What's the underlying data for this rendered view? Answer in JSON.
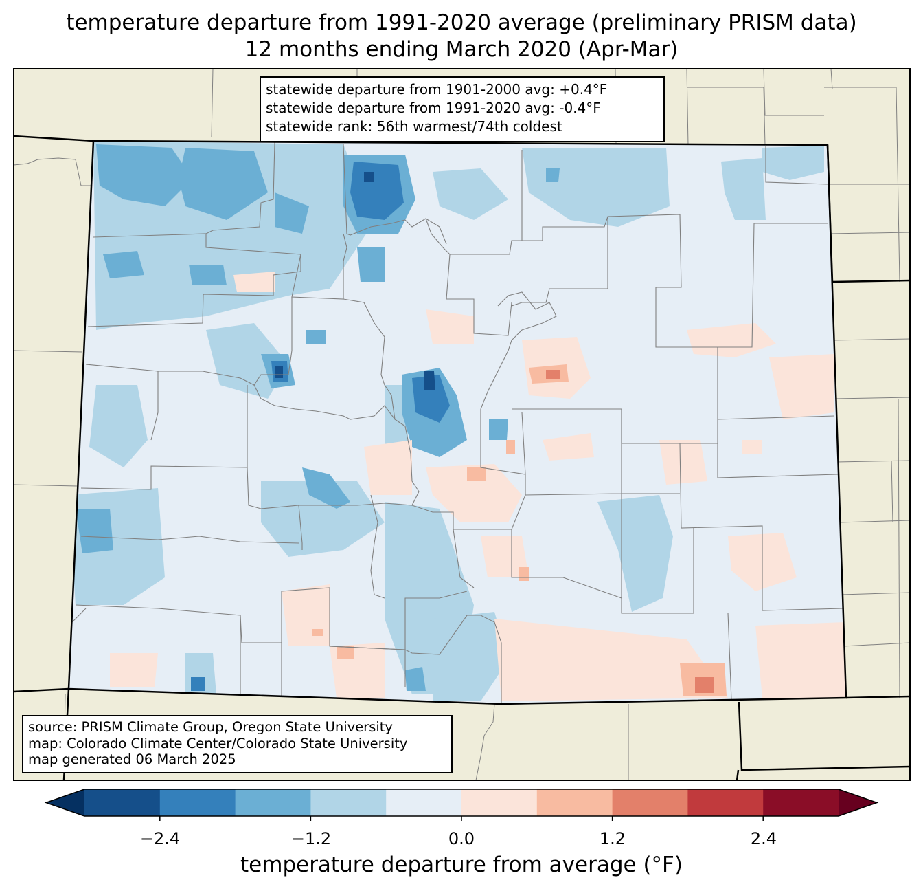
{
  "title": {
    "line1": "temperature departure from 1991-2020 average (preliminary PRISM data)",
    "line2": "12 months ending March 2020 (Apr-Mar)"
  },
  "stats": {
    "line1": "statewide departure from 1901-2000 avg: +0.4°F",
    "line2": "statewide departure from 1991-2020 avg: -0.4°F",
    "line3": "statewide rank: 56th warmest/74th coldest"
  },
  "source": {
    "line1": "source: PRISM Climate Group, Oregon State University",
    "line2": "map: Colorado Climate Center/Colorado State University",
    "line3": "map generated 06 March 2025"
  },
  "colorbar": {
    "label": "temperature departure from average (°F)",
    "ticks": [
      "−2.4",
      "−1.2",
      "0.0",
      "1.2",
      "2.4"
    ],
    "tick_values": [
      -2.4,
      -1.2,
      0.0,
      1.2,
      2.4
    ],
    "bins": [
      -3.0,
      -2.4,
      -1.8,
      -1.2,
      -0.6,
      0.0,
      0.6,
      1.2,
      1.8,
      2.4,
      3.0
    ],
    "colors": [
      "#053061",
      "#154f8a",
      "#3480bb",
      "#6bafd4",
      "#b1d5e7",
      "#e6eef6",
      "#fbe4da",
      "#f8bba1",
      "#e3806a",
      "#c13a3d",
      "#8a0d27",
      "#67001f"
    ]
  },
  "colors": {
    "land": "#efedda",
    "state_border": "#000000",
    "county_line": "#808080"
  }
}
